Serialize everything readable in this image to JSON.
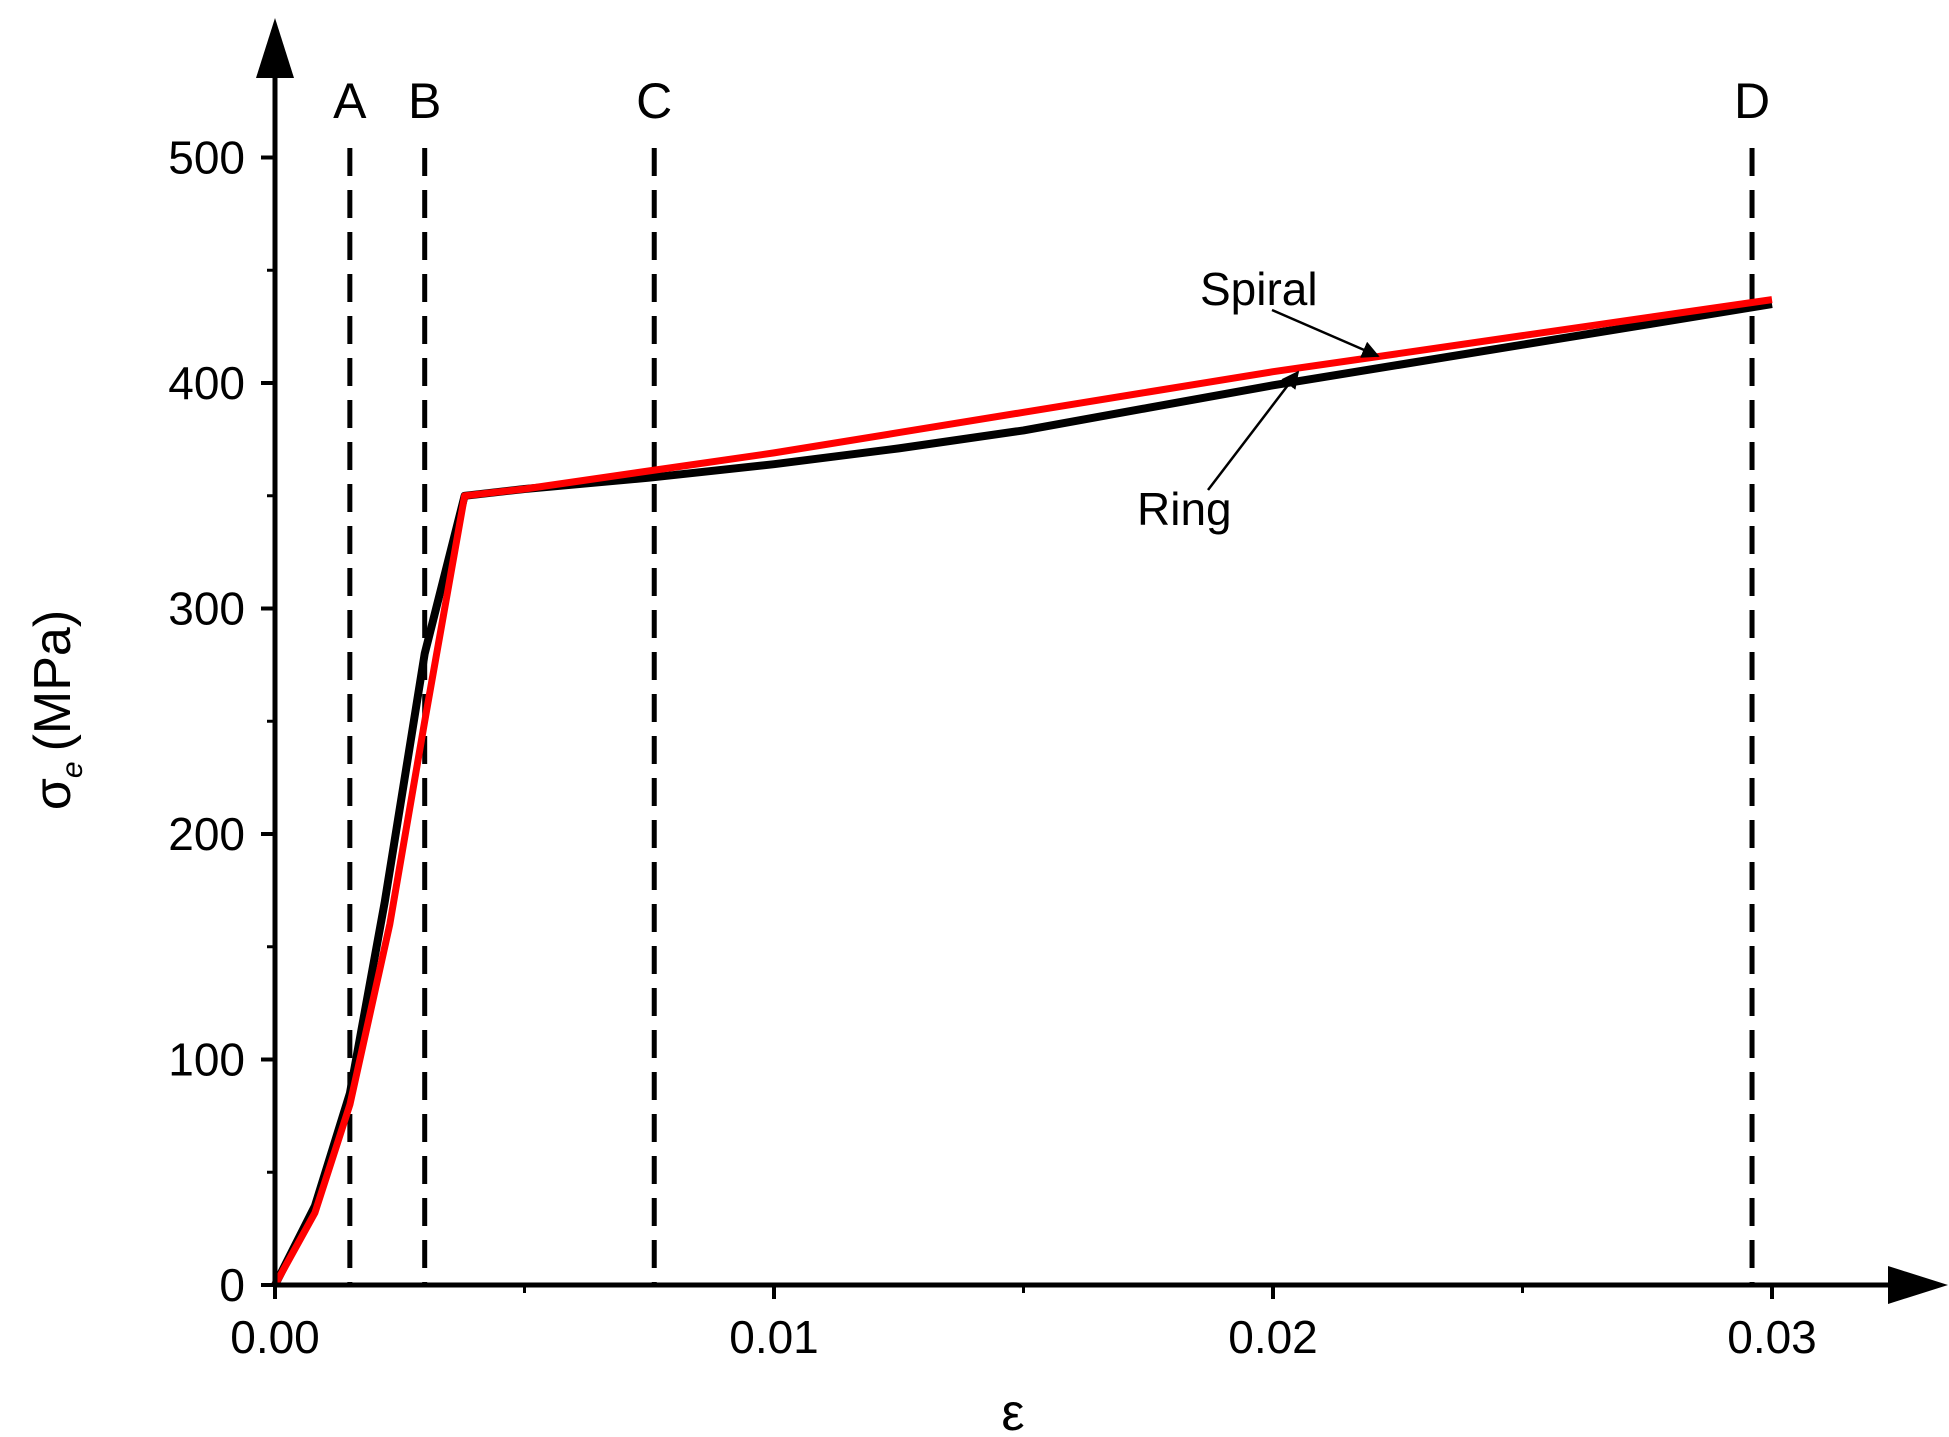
{
  "chart_data": {
    "type": "line",
    "xlabel": "ε",
    "ylabel_main": "σ",
    "ylabel_sub": "e",
    "ylabel_unit": "(MPa)",
    "xlim": [
      0,
      0.033
    ],
    "ylim": [
      0,
      550
    ],
    "xticks": [
      0.0,
      0.01,
      0.02,
      0.03
    ],
    "xtick_labels": [
      "0.00",
      "0.01",
      "0.02",
      "0.03"
    ],
    "xminor": [
      0.005,
      0.015,
      0.025
    ],
    "yticks": [
      0,
      100,
      200,
      300,
      400,
      500
    ],
    "ytick_labels": [
      "0",
      "100",
      "200",
      "300",
      "400",
      "500"
    ],
    "yminor": [
      50,
      150,
      250,
      350,
      450
    ],
    "grid": false,
    "series": [
      {
        "name": "Ring",
        "color": "#000000",
        "x": [
          0,
          0.0008,
          0.0015,
          0.0022,
          0.003,
          0.0038,
          0.005,
          0.0075,
          0.01,
          0.0125,
          0.015,
          0.0175,
          0.02,
          0.0225,
          0.025,
          0.0275,
          0.03
        ],
        "y": [
          0,
          35,
          85,
          170,
          280,
          350,
          353,
          358,
          364,
          371,
          379,
          389,
          399,
          408,
          417,
          426,
          435
        ]
      },
      {
        "name": "Spiral",
        "color": "#ff0000",
        "x": [
          0,
          0.0008,
          0.0015,
          0.0023,
          0.003,
          0.0038,
          0.005,
          0.0075,
          0.01,
          0.0125,
          0.015,
          0.0175,
          0.02,
          0.0225,
          0.025,
          0.0275,
          0.03
        ],
        "y": [
          0,
          32,
          80,
          160,
          250,
          350,
          353,
          361,
          369,
          378,
          387,
          396,
          405,
          413,
          421,
          429,
          437
        ]
      }
    ],
    "reference_lines": [
      {
        "label": "A",
        "x": 0.0015
      },
      {
        "label": "B",
        "x": 0.003
      },
      {
        "label": "C",
        "x": 0.0076
      },
      {
        "label": "D",
        "x": 0.0296
      }
    ],
    "annotations": [
      {
        "text": "Spiral",
        "target_series": "Spiral",
        "target_x": 0.022
      },
      {
        "text": "Ring",
        "target_series": "Ring",
        "target_x": 0.0205
      }
    ]
  }
}
